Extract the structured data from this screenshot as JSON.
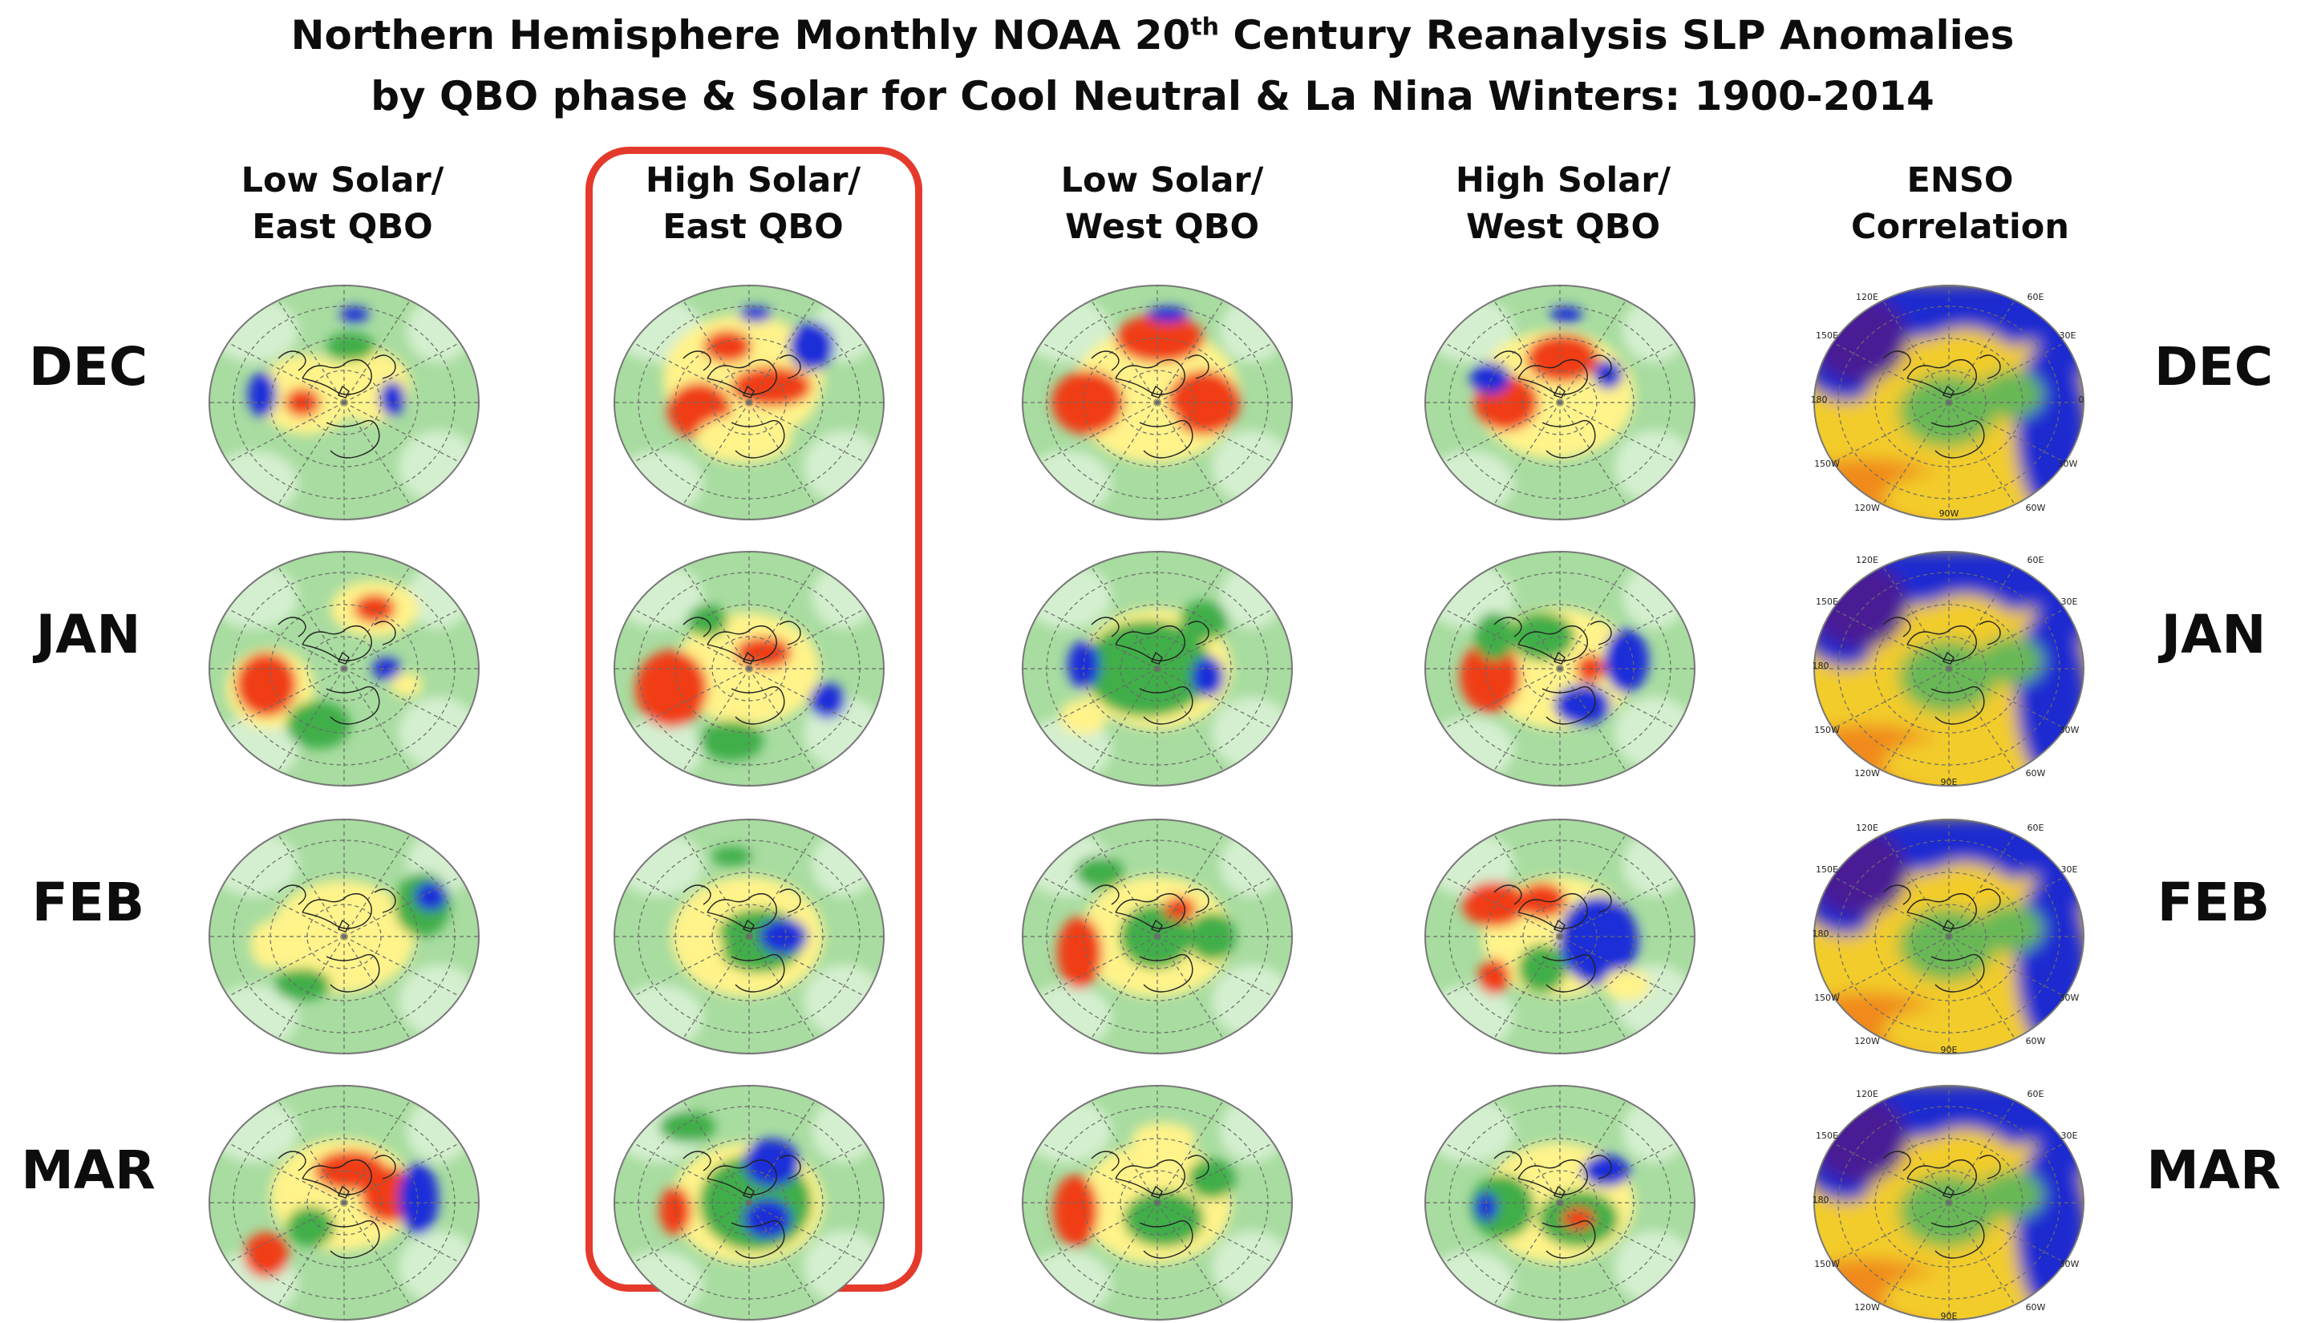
{
  "title": {
    "line1_a": "Northern Hemisphere Monthly NOAA 20",
    "line1_sup": "th",
    "line1_b": " Century Reanalysis SLP Anomalies",
    "line2": "by QBO phase & Solar for Cool Neutral & La Nina Winters: 1900-2014"
  },
  "columns": [
    {
      "line1": "Low Solar/",
      "line2": "East QBO"
    },
    {
      "line1": "High Solar/",
      "line2": "East QBO"
    },
    {
      "line1": "Low Solar/",
      "line2": "West QBO"
    },
    {
      "line1": "High Solar/",
      "line2": "West QBO"
    },
    {
      "line1": "ENSO",
      "line2": "Correlation"
    }
  ],
  "rows": [
    "DEC",
    "JAN",
    "FEB",
    "MAR"
  ],
  "highlight": {
    "column": "High Solar/ East QBO",
    "color": "#e43a2b"
  },
  "map_colors": {
    "background_green": "#a8dca0",
    "light_green": "#d4efcf",
    "positive_yellow": "#fff38a",
    "positive_red": "#f03c14",
    "negative_green": "#3fae4a",
    "negative_blue": "#1e2fd8"
  },
  "enso_labels": {
    "dec": [
      "120E",
      "60E",
      "150E",
      "30E",
      "180",
      "0",
      "150W",
      "30W",
      "120W",
      "90W",
      "60W"
    ],
    "other": [
      "120E",
      "60E",
      "150E",
      "30E",
      "180",
      "150W",
      "30W",
      "120W",
      "90E",
      "60W"
    ]
  }
}
